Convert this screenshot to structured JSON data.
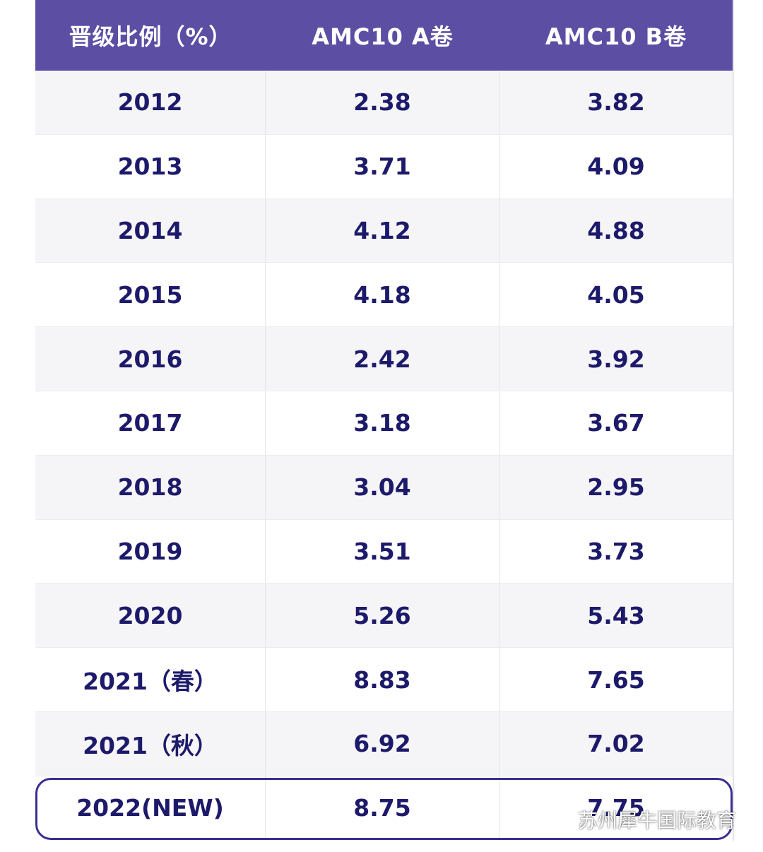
{
  "header": {
    "col1": "晋级比例（%）",
    "col2": "AMC10 A卷",
    "col3": "AMC10 B卷"
  },
  "rows": [
    {
      "year": "2012",
      "a": "2.38",
      "b": "3.82"
    },
    {
      "year": "2013",
      "a": "3.71",
      "b": "4.09"
    },
    {
      "year": "2014",
      "a": "4.12",
      "b": "4.88"
    },
    {
      "year": "2015",
      "a": "4.18",
      "b": "4.05"
    },
    {
      "year": "2016",
      "a": "2.42",
      "b": "3.92"
    },
    {
      "year": "2017",
      "a": "3.18",
      "b": "3.67"
    },
    {
      "year": "2018",
      "a": "3.04",
      "b": "2.95"
    },
    {
      "year": "2019",
      "a": "3.51",
      "b": "3.73"
    },
    {
      "year": "2020",
      "a": "5.26",
      "b": "5.43"
    },
    {
      "year": "2021（春）",
      "a": "8.83",
      "b": "7.65"
    },
    {
      "year": "2021（秋）",
      "a": "6.92",
      "b": "7.02"
    },
    {
      "year": "2022(NEW)",
      "a": "8.75",
      "b": "7.75"
    }
  ],
  "watermark": {
    "text": "苏州犀牛国际教育",
    "icon": "wechat-icon"
  },
  "colors": {
    "header_bg": "#5b4ea3",
    "cell_text": "#1d1a6b",
    "highlight_border": "#3a2f8f"
  }
}
